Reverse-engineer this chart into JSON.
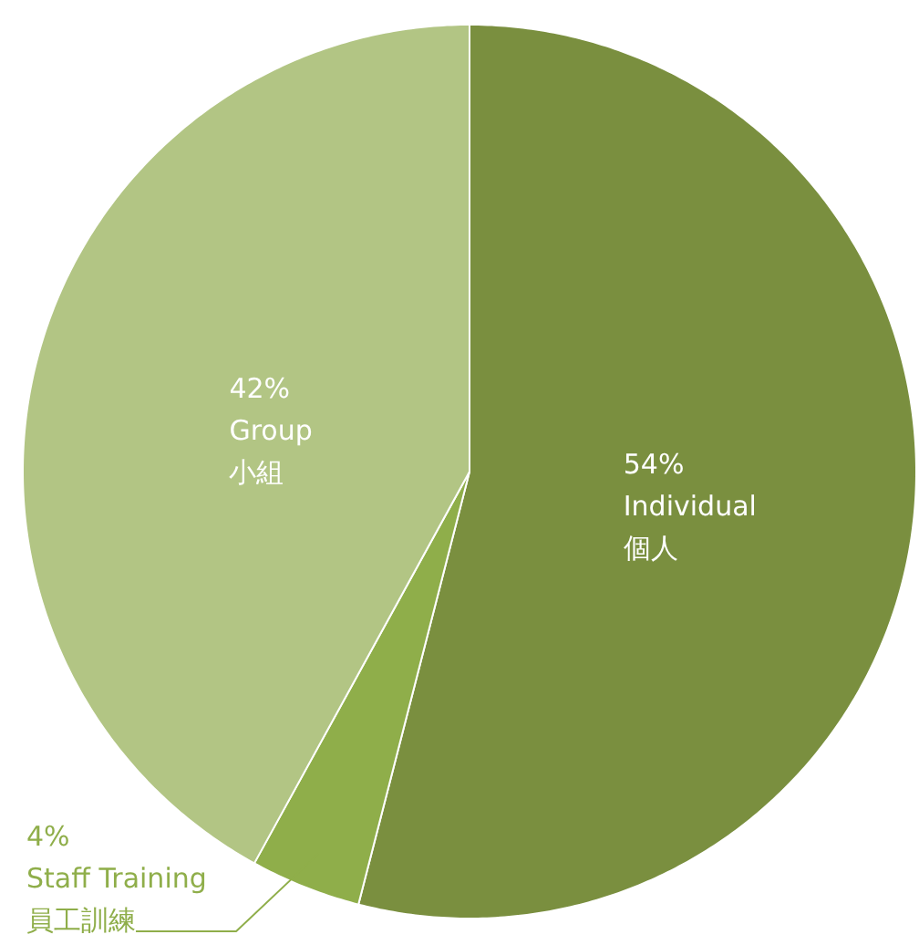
{
  "chart_data": {
    "type": "pie",
    "categories": [
      "Individual\n個人",
      "Staff Training\n員工訓練",
      "Group\n小組"
    ],
    "values": [
      54,
      4,
      42
    ],
    "value_labels": [
      "54%",
      "4%",
      "42%"
    ],
    "colors": [
      "#7a8f3f",
      "#8fae4a",
      "#b2c584"
    ]
  }
}
